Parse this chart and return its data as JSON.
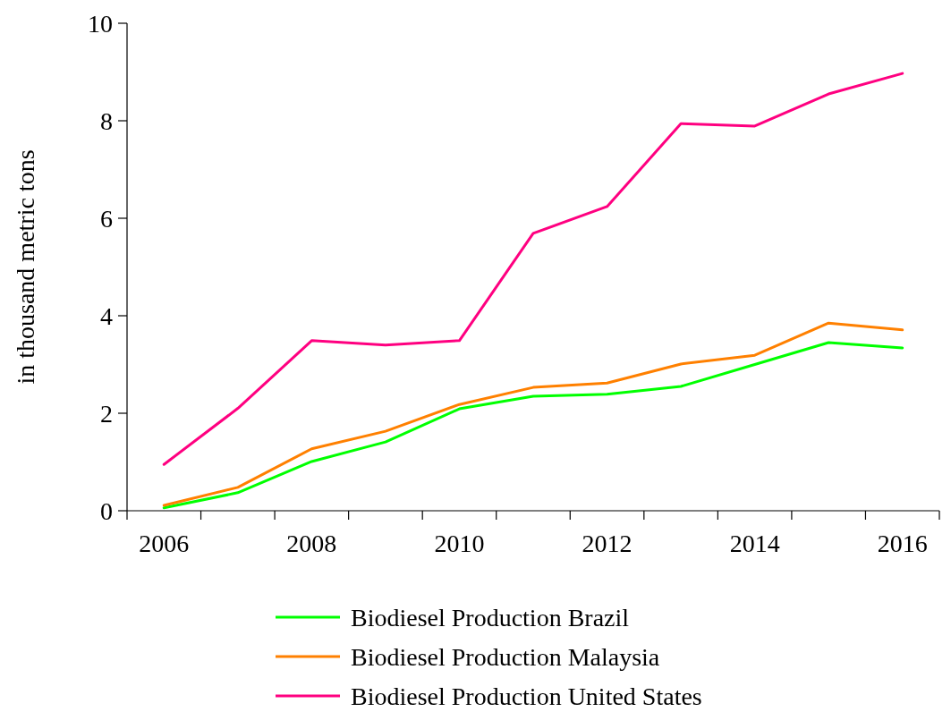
{
  "chart_data": {
    "type": "line",
    "ylabel": "in thousand metric tons",
    "categories": [
      "2006",
      null,
      "2008",
      null,
      "2010",
      null,
      "2012",
      null,
      "2014",
      null,
      "2016"
    ],
    "ylim": [
      0,
      10
    ],
    "yticks": [
      0,
      2,
      4,
      6,
      8,
      10
    ],
    "grid": false,
    "legend": "bottom",
    "marker": "none",
    "line_style": "solid",
    "series": [
      {
        "name": "Biodiesel Production Brazil",
        "color": "#00ff00",
        "values": [
          0.06,
          0.37,
          1.01,
          1.41,
          2.09,
          2.35,
          2.39,
          2.55,
          3.0,
          3.45,
          3.34
        ]
      },
      {
        "name": "Biodiesel Production Malaysia",
        "color": "#ff8000",
        "values": [
          0.11,
          0.48,
          1.27,
          1.63,
          2.18,
          2.53,
          2.62,
          3.01,
          3.19,
          3.85,
          3.71
        ]
      },
      {
        "name": "Biodiesel Production United States",
        "color": "#ff0080",
        "values": [
          0.95,
          2.1,
          3.49,
          3.4,
          3.49,
          5.69,
          6.24,
          7.94,
          7.89,
          8.55,
          8.97
        ]
      }
    ]
  }
}
